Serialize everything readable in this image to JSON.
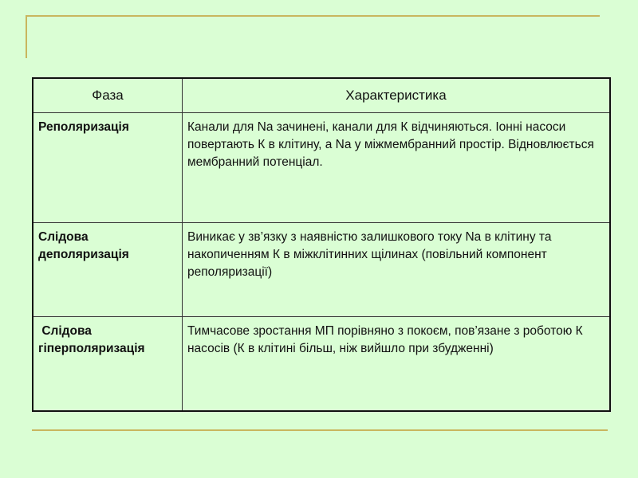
{
  "table": {
    "headers": [
      "Фаза",
      "Характеристика"
    ],
    "rows": [
      {
        "phase": "Реполяризація",
        "description": "Канали для Na зачинені, канали для К відчиняються. Іонні насоси повертають К в клітину, а Na у міжмембранний простір. Відновлюється  мембранний потенціал."
      },
      {
        "phase": "Слідова деполяризація",
        "description": "Виникає у зв’язку з наявністю залишкового току Na в клітину та накопиченням К в міжклітинних щілинах (повільний компонент реполяризації)"
      },
      {
        "phase": " Слідова гіперполяризація",
        "description": "Тимчасове зростання МП порівняно з покоєм, пов’язане з роботою К насосів (К в клітині більш, ніж вийшло при збудженні)"
      }
    ]
  },
  "colors": {
    "background": "#dafed4",
    "accent": "#c9b65e"
  }
}
